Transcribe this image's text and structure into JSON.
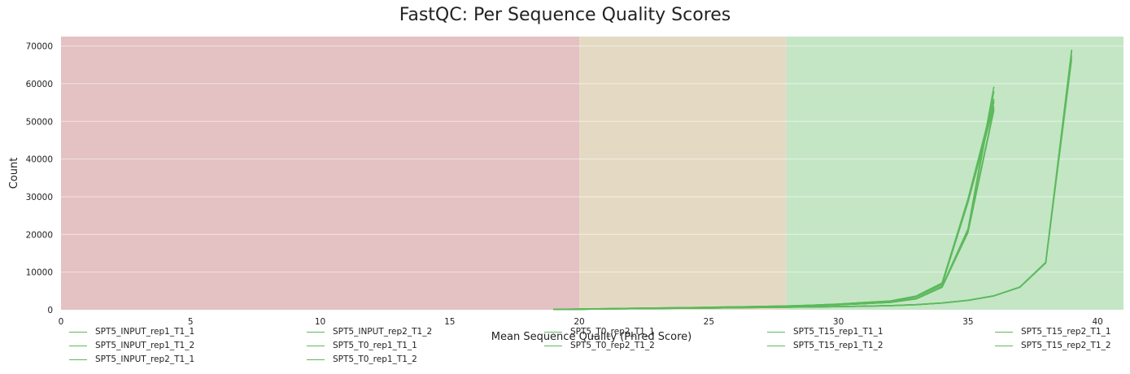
{
  "chart_data": {
    "type": "line",
    "title": "FastQC: Per Sequence Quality Scores",
    "xlabel": "Mean Sequence Quality (Phred Score)",
    "ylabel": "Count",
    "xlim": [
      0,
      41
    ],
    "ylim": [
      0,
      72500
    ],
    "x_ticks": [
      0,
      5,
      10,
      15,
      20,
      25,
      30,
      35,
      40
    ],
    "y_ticks": [
      0,
      10000,
      20000,
      30000,
      40000,
      50000,
      60000,
      70000
    ],
    "grid": true,
    "legend_position": "bottom",
    "background_bands": [
      {
        "from": 0,
        "to": 20,
        "color": "#e4c1c2"
      },
      {
        "from": 20,
        "to": 28,
        "color": "#e4dac3"
      },
      {
        "from": 28,
        "to": 41,
        "color": "#c4e6c5"
      }
    ],
    "line_color": "#5cb85c",
    "series": [
      {
        "name": "SPT5_INPUT_rep1_T1_1",
        "x": [
          19,
          20,
          21,
          22,
          23,
          24,
          25,
          26,
          27,
          28,
          29,
          30,
          31,
          32,
          33,
          34,
          35,
          36
        ],
        "y": [
          100,
          180,
          280,
          380,
          470,
          560,
          650,
          760,
          880,
          1000,
          1200,
          1500,
          1900,
          2300,
          3600,
          7000,
          29000,
          55000
        ]
      },
      {
        "name": "SPT5_INPUT_rep1_T1_2",
        "x": [
          19,
          20,
          21,
          22,
          23,
          24,
          25,
          26,
          27,
          28,
          29,
          30,
          31,
          32,
          33,
          34,
          35,
          36
        ],
        "y": [
          100,
          170,
          260,
          360,
          450,
          540,
          630,
          740,
          860,
          980,
          1150,
          1450,
          1800,
          2200,
          3400,
          6600,
          28500,
          54000
        ]
      },
      {
        "name": "SPT5_INPUT_rep2_T1_1",
        "x": [
          19,
          20,
          21,
          22,
          23,
          24,
          25,
          26,
          27,
          28,
          29,
          30,
          31,
          32,
          33,
          34,
          35,
          36
        ],
        "y": [
          110,
          190,
          290,
          390,
          480,
          570,
          660,
          770,
          890,
          1010,
          1220,
          1520,
          1920,
          2320,
          3650,
          7100,
          29500,
          56000
        ]
      },
      {
        "name": "SPT5_INPUT_rep2_T1_2",
        "x": [
          19,
          20,
          21,
          22,
          23,
          24,
          25,
          26,
          27,
          28,
          29,
          30,
          31,
          32,
          33,
          34,
          35,
          36
        ],
        "y": [
          105,
          185,
          285,
          385,
          475,
          565,
          655,
          765,
          885,
          1005,
          1210,
          1510,
          1910,
          2310,
          3620,
          7050,
          29200,
          55500
        ]
      },
      {
        "name": "SPT5_T0_rep1_T1_1",
        "x": [
          19,
          20,
          21,
          22,
          23,
          24,
          25,
          26,
          27,
          28,
          29,
          30,
          31,
          32,
          33,
          34,
          35,
          36
        ],
        "y": [
          90,
          160,
          250,
          340,
          420,
          500,
          580,
          680,
          790,
          900,
          1080,
          1350,
          1650,
          2000,
          3000,
          6200,
          21500,
          59200
        ]
      },
      {
        "name": "SPT5_T0_rep1_T1_2",
        "x": [
          19,
          20,
          21,
          22,
          23,
          24,
          25,
          26,
          27,
          28,
          29,
          30,
          31,
          32,
          33,
          34,
          35,
          36
        ],
        "y": [
          90,
          155,
          245,
          335,
          415,
          495,
          575,
          675,
          785,
          895,
          1070,
          1340,
          1640,
          1980,
          2950,
          6100,
          21000,
          58000
        ]
      },
      {
        "name": "SPT5_T0_rep2_T1_1",
        "x": [
          19,
          20,
          21,
          22,
          23,
          24,
          25,
          26,
          27,
          28,
          29,
          30,
          31,
          32,
          33,
          34,
          35,
          36
        ],
        "y": [
          85,
          150,
          240,
          330,
          410,
          490,
          570,
          670,
          780,
          890,
          1060,
          1320,
          1620,
          1960,
          2900,
          6000,
          20800,
          53500
        ]
      },
      {
        "name": "SPT5_T0_rep2_T1_2",
        "x": [
          19,
          20,
          21,
          22,
          23,
          24,
          25,
          26,
          27,
          28,
          29,
          30,
          31,
          32,
          33,
          34,
          35,
          36
        ],
        "y": [
          85,
          150,
          238,
          328,
          408,
          488,
          568,
          668,
          778,
          888,
          1055,
          1315,
          1610,
          1950,
          2880,
          5950,
          20500,
          53000
        ]
      },
      {
        "name": "SPT5_T15_rep1_T1_1",
        "x": [
          19,
          20,
          21,
          22,
          23,
          24,
          25,
          26,
          27,
          28,
          29,
          30,
          31,
          32,
          33,
          34,
          35,
          36,
          37,
          38,
          39
        ],
        "y": [
          80,
          140,
          210,
          280,
          340,
          400,
          460,
          530,
          600,
          680,
          760,
          850,
          950,
          1100,
          1350,
          1800,
          2500,
          3700,
          6000,
          12500,
          68800
        ]
      },
      {
        "name": "SPT5_T15_rep1_T1_2",
        "x": [
          19,
          20,
          21,
          22,
          23,
          24,
          25,
          26,
          27,
          28,
          29,
          30,
          31,
          32,
          33,
          34,
          35,
          36,
          37,
          38,
          39
        ],
        "y": [
          78,
          138,
          208,
          278,
          338,
          398,
          458,
          528,
          598,
          678,
          758,
          848,
          948,
          1095,
          1340,
          1790,
          2480,
          3680,
          5950,
          12400,
          67500
        ]
      },
      {
        "name": "SPT5_T15_rep2_T1_1",
        "x": [
          19,
          20,
          21,
          22,
          23,
          24,
          25,
          26,
          27,
          28,
          29,
          30,
          31,
          32,
          33,
          34,
          35,
          36,
          37,
          38,
          39
        ],
        "y": [
          82,
          142,
          212,
          282,
          342,
          402,
          462,
          532,
          602,
          682,
          762,
          852,
          952,
          1105,
          1360,
          1810,
          2520,
          3720,
          6050,
          12600,
          69000
        ]
      },
      {
        "name": "SPT5_T15_rep2_T1_2",
        "x": [
          19,
          20,
          21,
          22,
          23,
          24,
          25,
          26,
          27,
          28,
          29,
          30,
          31,
          32,
          33,
          34,
          35,
          36,
          37,
          38,
          39
        ],
        "y": [
          80,
          140,
          210,
          280,
          340,
          400,
          460,
          530,
          600,
          680,
          760,
          850,
          950,
          1100,
          1350,
          1800,
          2500,
          3700,
          6000,
          12450,
          66500
        ]
      }
    ]
  }
}
